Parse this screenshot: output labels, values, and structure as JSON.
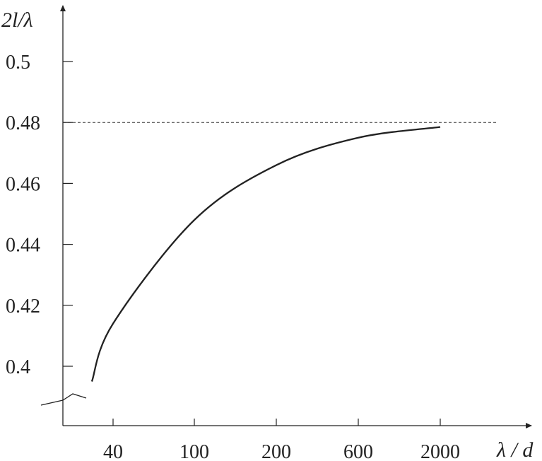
{
  "chart_data": {
    "type": "line",
    "xlabel": "λ / d",
    "ylabel": "2l/λ",
    "x_ticks": [
      "40",
      "100",
      "200",
      "600",
      "2000"
    ],
    "y_ticks": [
      0.4,
      0.42,
      0.44,
      0.46,
      0.48,
      0.5
    ],
    "y_tick_labels": [
      "0.4",
      "0.42",
      "0.44",
      "0.46",
      "0.48",
      "0.5"
    ],
    "ylim": [
      0.38,
      0.52
    ],
    "x_axis_scale": "categorical (non-uniform)",
    "y_axis_break": true,
    "asymptote": {
      "y": 0.48,
      "style": "dashed"
    },
    "series": [
      {
        "points": [
          {
            "x": "30",
            "y": 0.395
          },
          {
            "x": "40",
            "y": 0.414
          },
          {
            "x": "100",
            "y": 0.448
          },
          {
            "x": "200",
            "y": 0.466
          },
          {
            "x": "600",
            "y": 0.475
          },
          {
            "x": "2000",
            "y": 0.4785
          }
        ]
      }
    ],
    "grid": false,
    "legend": "none"
  }
}
